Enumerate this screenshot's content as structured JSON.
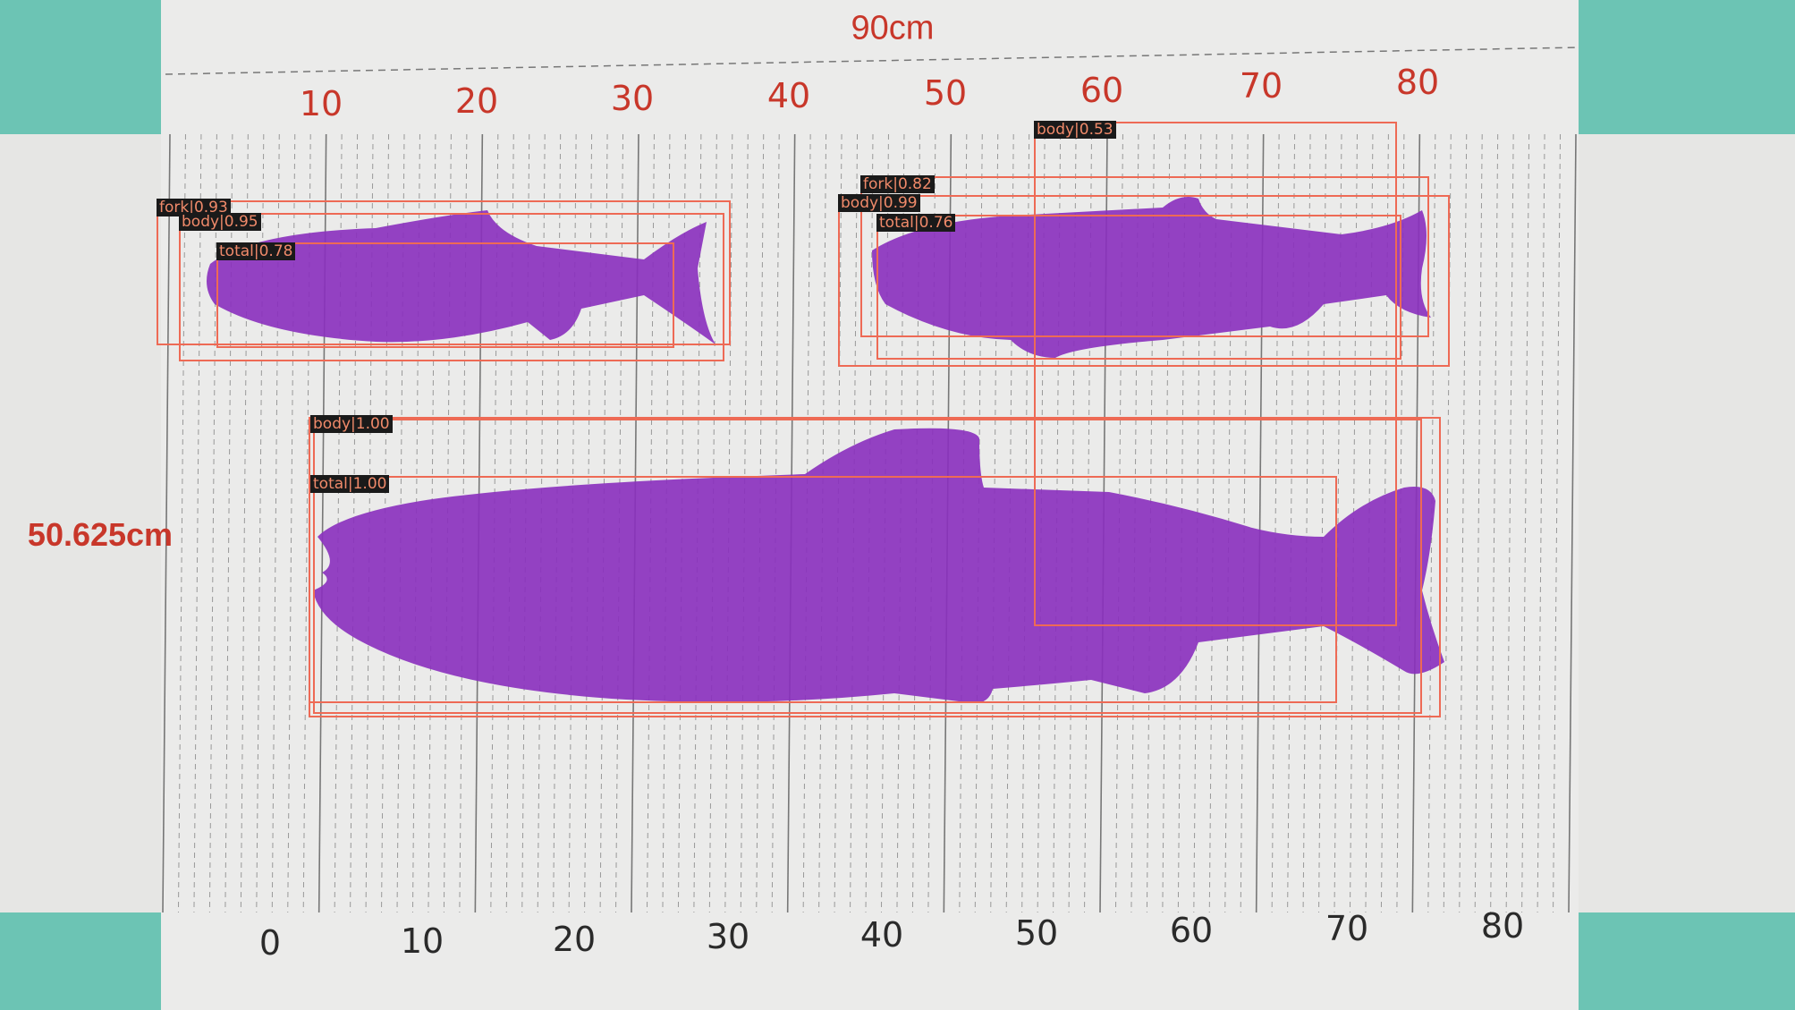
{
  "board": {
    "width_label": "90cm",
    "height_label": "50.625cm",
    "top_scale": [
      "10",
      "20",
      "30",
      "40",
      "50",
      "60",
      "70",
      "80"
    ],
    "bottom_scale": [
      "0",
      "10",
      "20",
      "30",
      "40",
      "50",
      "60",
      "70",
      "80"
    ]
  },
  "detections": [
    {
      "label": "fork|0.93"
    },
    {
      "label": "body|0.95"
    },
    {
      "label": "total|0.78"
    },
    {
      "label": "fork|0.82"
    },
    {
      "label": "body|0.99"
    },
    {
      "label": "total|0.76"
    },
    {
      "label": "body|0.53"
    },
    {
      "label": "body|1.00"
    },
    {
      "label": "total|1.00"
    }
  ],
  "colors": {
    "background": "#6cc4b4",
    "board": "#ebebea",
    "scale_text": "#c8372a",
    "box": "#ee6a55",
    "mask": "#8a2fbe"
  }
}
